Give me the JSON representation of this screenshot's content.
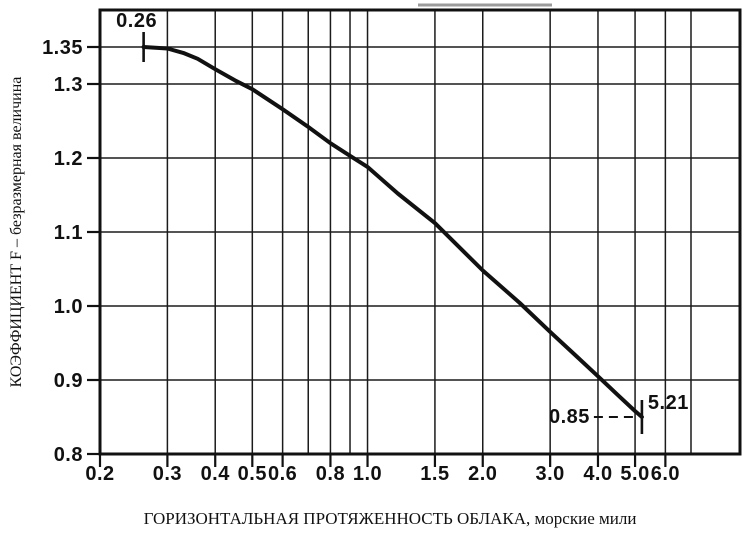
{
  "chart_data": {
    "type": "line",
    "title": "",
    "xlabel": "ГОРИЗОНТАЛЬНАЯ ПРОТЯЖЕННОСТЬ ОБЛАКА, морские мили",
    "ylabel": "КОЭФФИЦИЕНТ F – безразмерная величина",
    "line_color": "#111111",
    "grid": true,
    "legend": false,
    "x_axis": {
      "scale": "log",
      "min": 0.2,
      "frame_max": 9.4,
      "tick_values": [
        0.2,
        0.3,
        0.4,
        0.5,
        0.6,
        0.8,
        1.0,
        1.5,
        2.0,
        3.0,
        4.0,
        5.0,
        6.0
      ],
      "tick_labels": [
        "0.2",
        "0.3",
        "0.4",
        "0.5",
        "0.6",
        "0.8",
        "1.0",
        "1.5",
        "2.0",
        "3.0",
        "4.0",
        "5.0",
        "6.0"
      ],
      "gridline_values": [
        0.3,
        0.4,
        0.5,
        0.6,
        0.7,
        0.8,
        0.9,
        1.0,
        1.5,
        2.0,
        3.0,
        4.0,
        5.0,
        6.0,
        7.0
      ]
    },
    "y_axis": {
      "scale": "linear",
      "min": 0.8,
      "frame_max": 1.4,
      "tick_values": [
        1.35,
        1.3,
        1.2,
        1.1,
        1.0,
        0.9,
        0.8
      ],
      "tick_labels": [
        "1.35",
        "1.3",
        "1.2",
        "1.1",
        "1.0",
        "0.9",
        "0.8"
      ],
      "gridline_values": [
        0.9,
        1.0,
        1.1,
        1.2,
        1.3,
        1.35
      ]
    },
    "series": [
      {
        "name": "F",
        "points": [
          [
            0.26,
            1.35
          ],
          [
            0.3,
            1.348
          ],
          [
            0.33,
            1.342
          ],
          [
            0.36,
            1.334
          ],
          [
            0.4,
            1.32
          ],
          [
            0.45,
            1.305
          ],
          [
            0.5,
            1.293
          ],
          [
            0.6,
            1.266
          ],
          [
            0.7,
            1.242
          ],
          [
            0.8,
            1.22
          ],
          [
            0.9,
            1.203
          ],
          [
            1.0,
            1.188
          ],
          [
            1.2,
            1.152
          ],
          [
            1.5,
            1.112
          ],
          [
            2.0,
            1.048
          ],
          [
            2.5,
            1.004
          ],
          [
            3.0,
            0.965
          ],
          [
            3.5,
            0.933
          ],
          [
            4.0,
            0.905
          ],
          [
            4.5,
            0.88
          ],
          [
            5.0,
            0.858
          ],
          [
            5.21,
            0.85
          ]
        ]
      }
    ],
    "annotations": {
      "start": {
        "x": 0.26,
        "y": 1.35,
        "label": "0.26"
      },
      "end": {
        "x": 5.21,
        "y": 0.85,
        "x_label": "5.21",
        "y_label": "0.85"
      }
    }
  }
}
